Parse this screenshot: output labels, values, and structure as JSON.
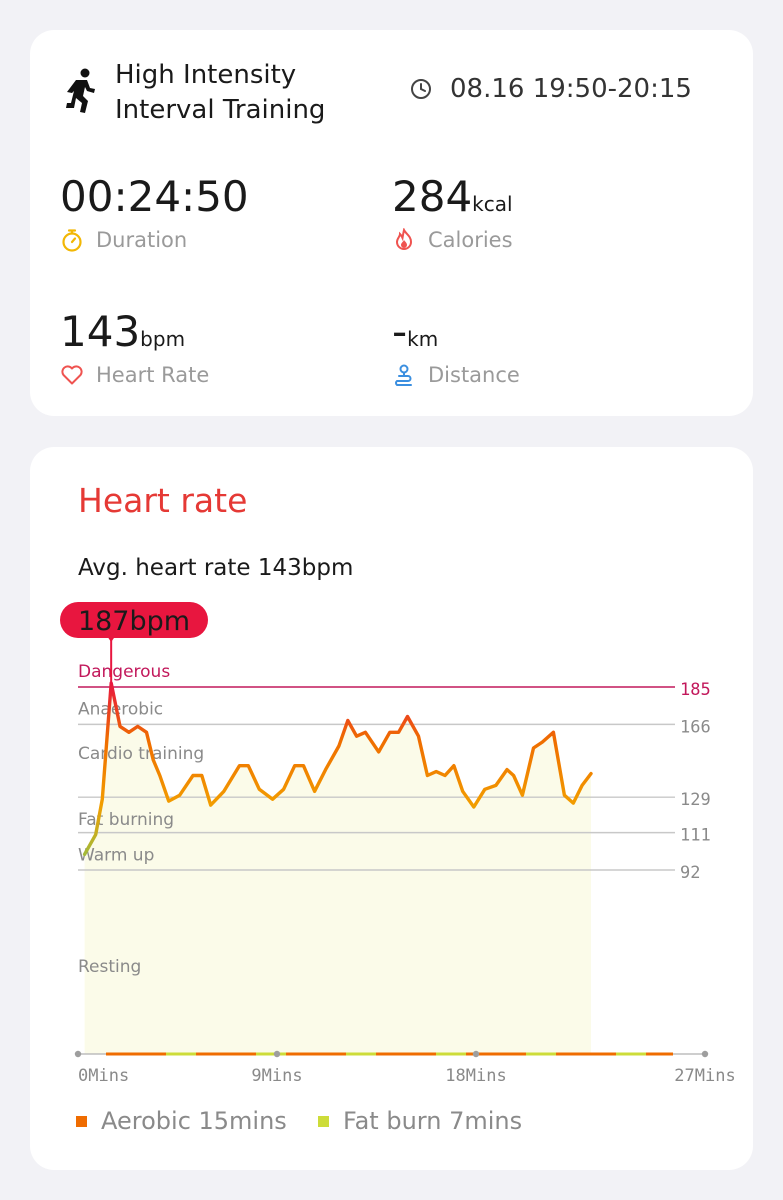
{
  "summary": {
    "workout_title_line1": "High Intensity",
    "workout_title_line2": "Interval Training",
    "time_range": "08.16 19:50-20:15",
    "duration": {
      "value": "00:24:50",
      "unit": "",
      "label": "Duration",
      "icon": "stopwatch-icon"
    },
    "calories": {
      "value": "284",
      "unit": "kcal",
      "label": "Calories",
      "icon": "flame-icon"
    },
    "heart_rate": {
      "value": "143",
      "unit": "bpm",
      "label": "Heart Rate",
      "icon": "heart-icon"
    },
    "distance": {
      "value": "-",
      "unit": "km",
      "label": "Distance",
      "icon": "route-icon"
    }
  },
  "heart_rate_card": {
    "title": "Heart rate",
    "avg_text": "Avg. heart rate 143bpm"
  },
  "colors": {
    "accent_red": "#e53935",
    "dangerous": "#c2185b",
    "line_orange": "#ef6c00",
    "fill": "#fbfbe9",
    "aerobic": "#ef6c00",
    "fat_burn": "#cddc39",
    "peak_badge": "#e8163f"
  },
  "chart_data": {
    "type": "line",
    "title": "",
    "xlabel": "",
    "ylabel": "",
    "xlim": [
      0,
      27
    ],
    "ylim": [
      50,
      195
    ],
    "x_ticks": [
      {
        "value": 0,
        "label": "0Mins"
      },
      {
        "value": 9,
        "label": "9Mins"
      },
      {
        "value": 18,
        "label": "18Mins"
      },
      {
        "value": 27,
        "label": "27Mins"
      }
    ],
    "zones": [
      {
        "name": "Dangerous",
        "threshold": 185,
        "threshold_label": "185"
      },
      {
        "name": "Anaerobic",
        "threshold": 166,
        "threshold_label": "166"
      },
      {
        "name": "Cardio training",
        "threshold": null,
        "threshold_label": ""
      },
      {
        "name": "Fat burning",
        "threshold": 129,
        "threshold_label": "129"
      },
      {
        "name": "Warm up",
        "threshold": 111,
        "threshold_label": "111"
      },
      {
        "name": "Resting",
        "threshold": 92,
        "threshold_label": "92"
      }
    ],
    "peak": {
      "x": 1.5,
      "value": 187,
      "label": "187bpm"
    },
    "series": [
      {
        "points": [
          [
            0.3,
            100
          ],
          [
            0.8,
            110
          ],
          [
            1.1,
            128
          ],
          [
            1.5,
            187
          ],
          [
            1.9,
            165
          ],
          [
            2.3,
            162
          ],
          [
            2.7,
            165
          ],
          [
            3.1,
            162
          ],
          [
            3.4,
            148
          ],
          [
            3.7,
            140
          ],
          [
            4.1,
            127
          ],
          [
            4.6,
            130
          ],
          [
            5.2,
            140
          ],
          [
            5.6,
            140
          ],
          [
            6.0,
            125
          ],
          [
            6.6,
            132
          ],
          [
            7.3,
            145
          ],
          [
            7.7,
            145
          ],
          [
            8.2,
            133
          ],
          [
            8.8,
            128
          ],
          [
            9.3,
            133
          ],
          [
            9.8,
            145
          ],
          [
            10.2,
            145
          ],
          [
            10.7,
            132
          ],
          [
            11.2,
            143
          ],
          [
            11.8,
            155
          ],
          [
            12.2,
            168
          ],
          [
            12.6,
            160
          ],
          [
            13.0,
            162
          ],
          [
            13.6,
            152
          ],
          [
            14.1,
            162
          ],
          [
            14.5,
            162
          ],
          [
            14.9,
            170
          ],
          [
            15.4,
            160
          ],
          [
            15.8,
            140
          ],
          [
            16.2,
            142
          ],
          [
            16.6,
            140
          ],
          [
            17.0,
            145
          ],
          [
            17.4,
            132
          ],
          [
            17.9,
            124
          ],
          [
            18.4,
            133
          ],
          [
            18.9,
            135
          ],
          [
            19.4,
            143
          ],
          [
            19.7,
            140
          ],
          [
            20.1,
            130
          ],
          [
            20.6,
            154
          ],
          [
            21.0,
            157
          ],
          [
            21.5,
            162
          ],
          [
            22.0,
            130
          ],
          [
            22.4,
            126
          ],
          [
            22.8,
            135
          ],
          [
            23.2,
            141
          ]
        ]
      }
    ],
    "legend": [
      {
        "name": "Aerobic 15mins",
        "color": "#ef6c00"
      },
      {
        "name": "Fat burn 7mins",
        "color": "#cddc39"
      }
    ],
    "legend_position": "bottom-left"
  }
}
